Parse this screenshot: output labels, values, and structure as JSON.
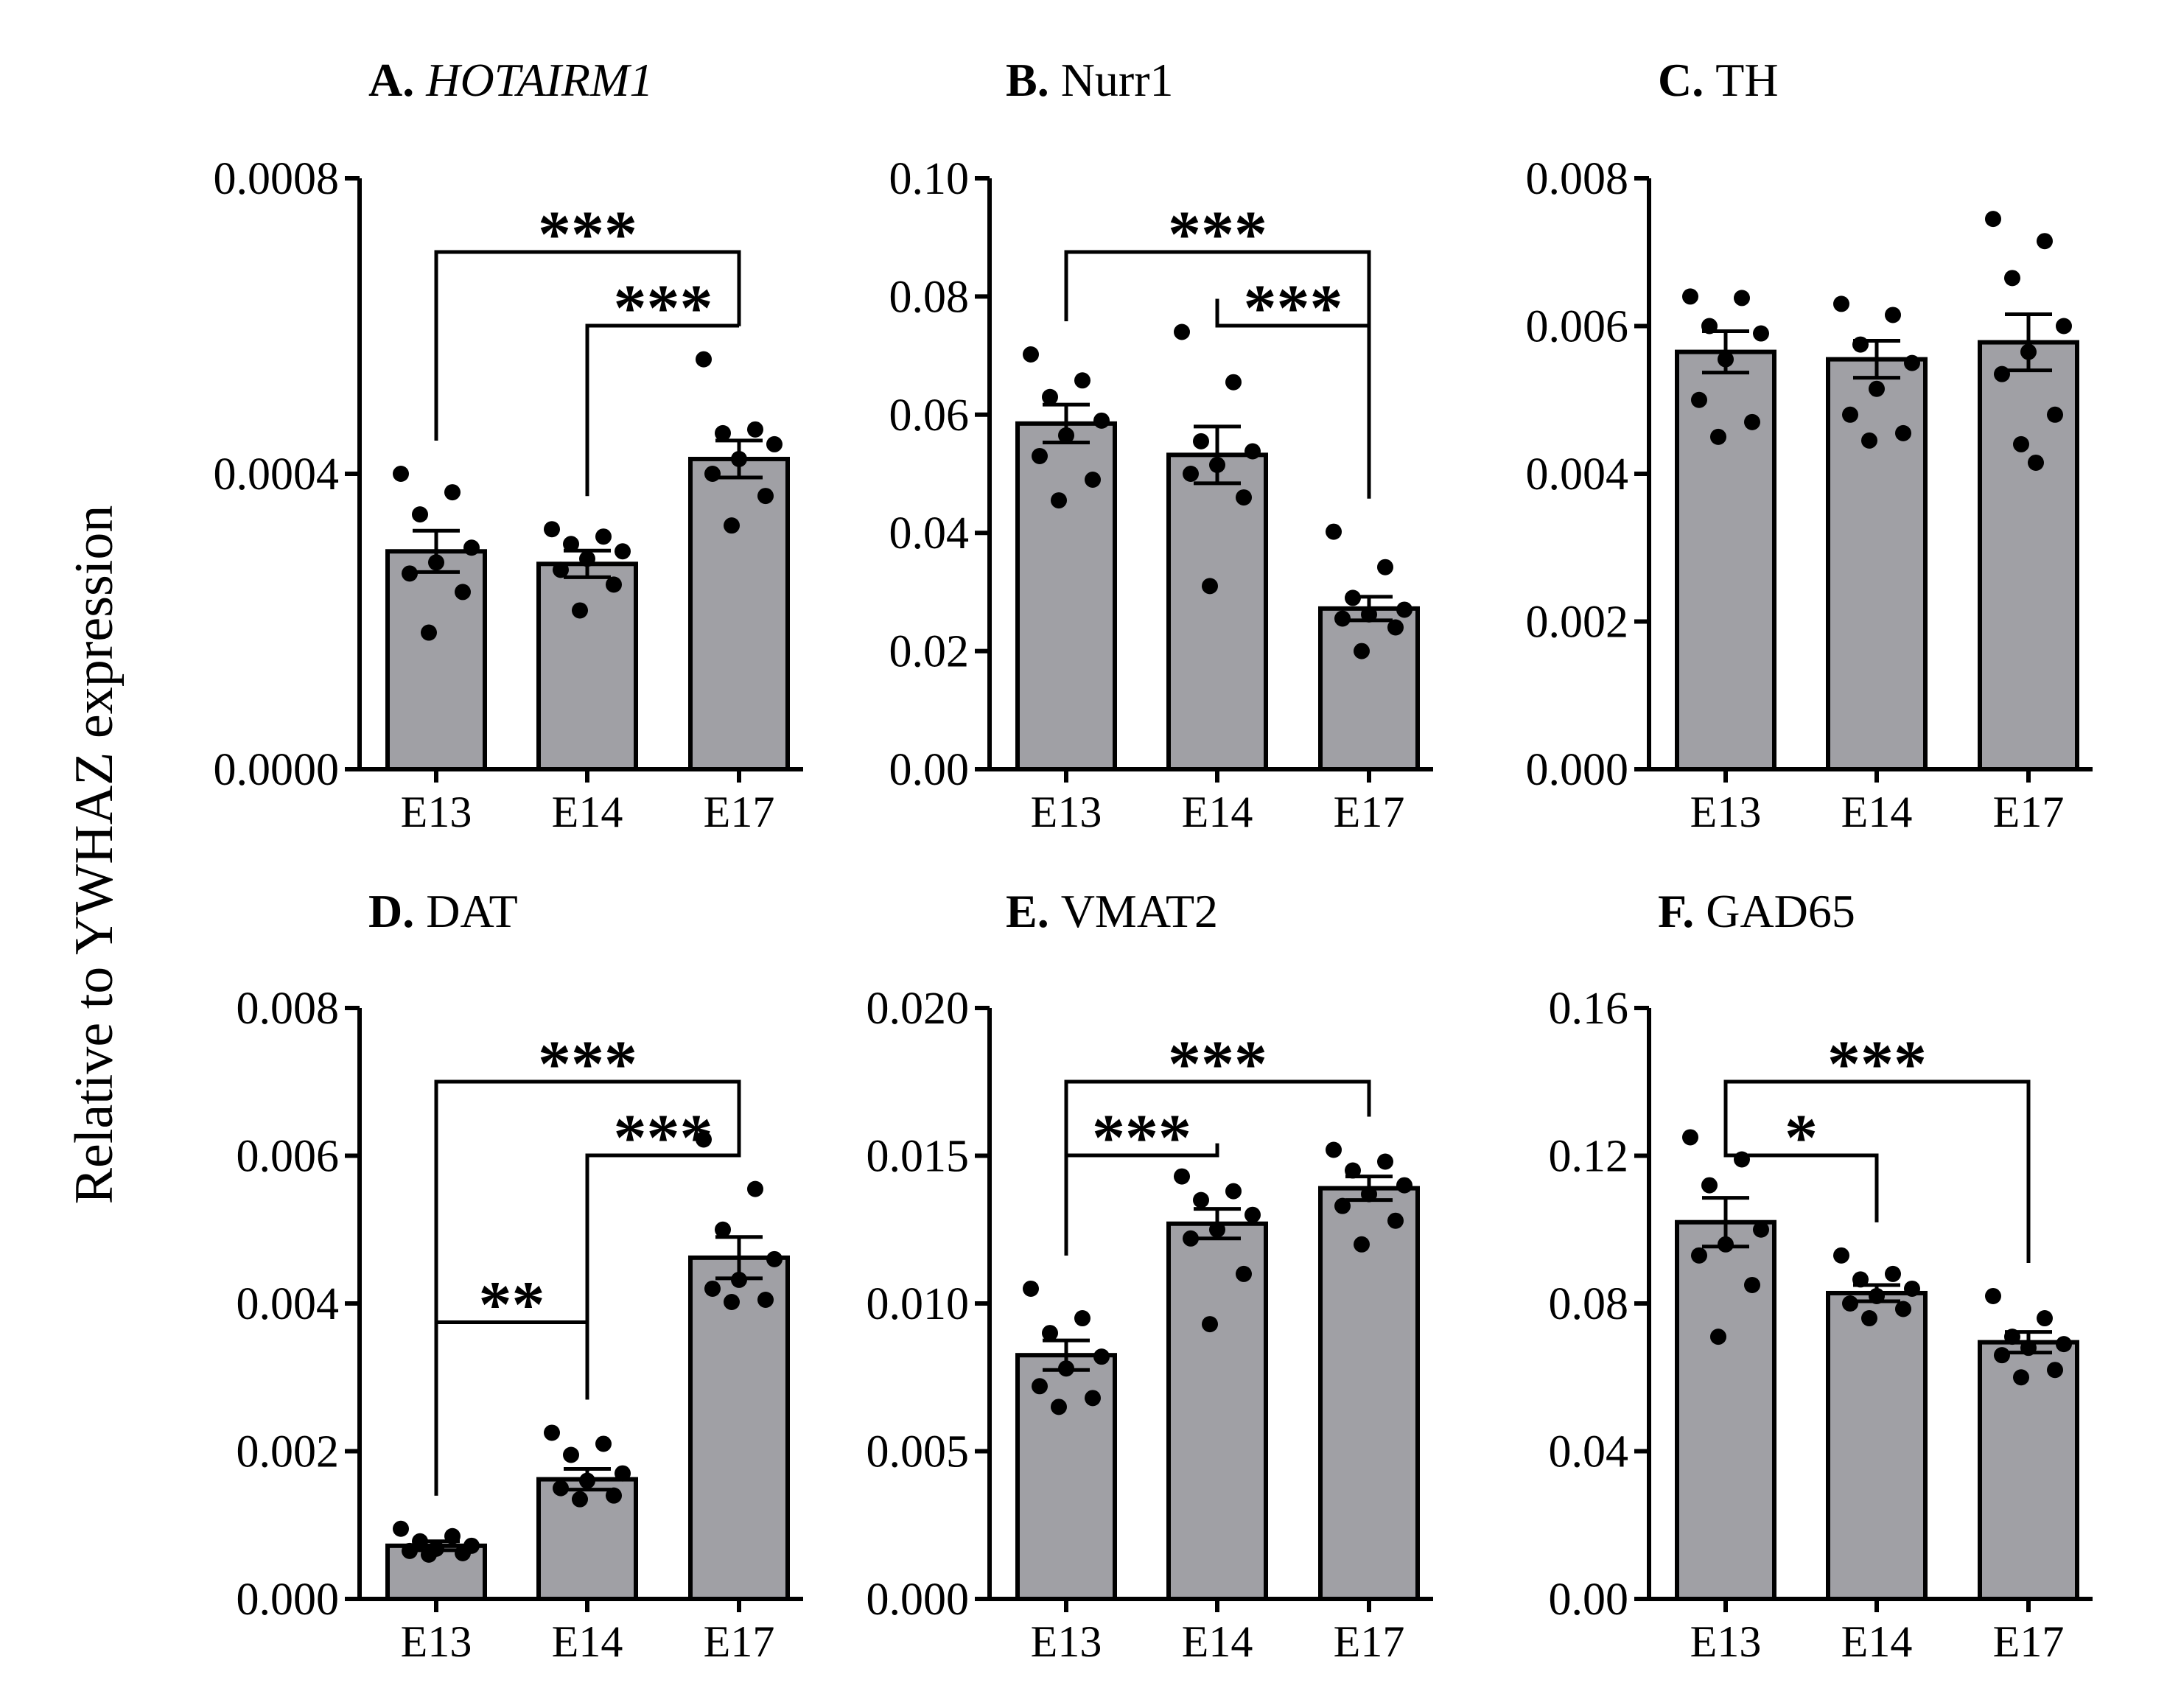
{
  "figure": {
    "ylabel": "Relative to YWHAZ expression"
  },
  "chart_data": [
    {
      "type": "bar",
      "panel": "A.",
      "title": "HOTAIRM1",
      "title_italic": true,
      "categories": [
        "E13",
        "E14",
        "E17"
      ],
      "values": [
        0.000295,
        0.000278,
        0.00042
      ],
      "sem": [
        2.8e-05,
        1.8e-05,
        2.5e-05
      ],
      "points": [
        [
          0.0004,
          0.000375,
          0.000345,
          0.0003,
          0.00028,
          0.000265,
          0.00024,
          0.000185
        ],
        [
          0.000325,
          0.000315,
          0.000305,
          0.000295,
          0.000285,
          0.00027,
          0.00025,
          0.000215
        ],
        [
          0.000555,
          0.00046,
          0.000455,
          0.00044,
          0.00042,
          0.0004,
          0.00037,
          0.00033
        ]
      ],
      "ylim": [
        0,
        0.0008
      ],
      "yticks": [
        "0.0000",
        "0.0004",
        "0.0008"
      ],
      "significance": [
        {
          "from": 0,
          "to": 2,
          "label": "***",
          "level": 0
        },
        {
          "from": 1,
          "to": 2,
          "label": "***",
          "level": 1
        }
      ]
    },
    {
      "type": "bar",
      "panel": "B.",
      "title": "Nurr1",
      "title_italic": false,
      "categories": [
        "E13",
        "E14",
        "E17"
      ],
      "values": [
        0.0585,
        0.0532,
        0.0272
      ],
      "sem": [
        0.0032,
        0.0048,
        0.002
      ],
      "points": [
        [
          0.0702,
          0.0658,
          0.063,
          0.059,
          0.0565,
          0.053,
          0.049,
          0.0455
        ],
        [
          0.074,
          0.0655,
          0.0555,
          0.0538,
          0.0515,
          0.05,
          0.046,
          0.031
        ],
        [
          0.0402,
          0.0342,
          0.029,
          0.027,
          0.0262,
          0.0255,
          0.024,
          0.02
        ]
      ],
      "ylim": [
        0,
        0.1
      ],
      "yticks": [
        "0.00",
        "0.02",
        "0.04",
        "0.06",
        "0.08",
        "0.10"
      ],
      "significance": [
        {
          "from": 0,
          "to": 2,
          "label": "***",
          "level": 0
        },
        {
          "from": 1,
          "to": 2,
          "label": "***",
          "level": 1
        }
      ]
    },
    {
      "type": "bar",
      "panel": "C.",
      "title": "TH",
      "title_italic": false,
      "categories": [
        "E13",
        "E14",
        "E17"
      ],
      "values": [
        0.00565,
        0.00555,
        0.00578
      ],
      "sem": [
        0.00028,
        0.00025,
        0.00038
      ],
      "points": [
        [
          0.0064,
          0.00638,
          0.006,
          0.0059,
          0.00555,
          0.005,
          0.0047,
          0.0045
        ],
        [
          0.0063,
          0.00615,
          0.00575,
          0.0055,
          0.00515,
          0.0048,
          0.00455,
          0.00445
        ],
        [
          0.00745,
          0.00715,
          0.00665,
          0.006,
          0.00565,
          0.00535,
          0.0048,
          0.0044,
          0.00415
        ]
      ],
      "ylim": [
        0,
        0.008
      ],
      "yticks": [
        "0.000",
        "0.002",
        "0.004",
        "0.006",
        "0.008"
      ],
      "significance": []
    },
    {
      "type": "bar",
      "panel": "D.",
      "title": "DAT",
      "title_italic": false,
      "categories": [
        "E13",
        "E14",
        "E17"
      ],
      "values": [
        0.00072,
        0.00162,
        0.00462
      ],
      "sem": [
        6e-05,
        0.00014,
        0.00028
      ],
      "points": [
        [
          0.00095,
          0.00085,
          0.00078,
          0.00072,
          0.00068,
          0.00065,
          0.00062,
          0.0006
        ],
        [
          0.00225,
          0.0021,
          0.00195,
          0.0017,
          0.0016,
          0.0015,
          0.0014,
          0.00135
        ],
        [
          0.00622,
          0.00555,
          0.005,
          0.0046,
          0.00432,
          0.0042,
          0.00405,
          0.00402
        ]
      ],
      "ylim": [
        0,
        0.008
      ],
      "yticks": [
        "0.000",
        "0.002",
        "0.004",
        "0.006",
        "0.008"
      ],
      "significance": [
        {
          "from": 0,
          "to": 2,
          "label": "***",
          "level": 0
        },
        {
          "from": 1,
          "to": 2,
          "label": "***",
          "level": 1
        },
        {
          "from": 0,
          "to": 1,
          "label": "**",
          "level": 2
        }
      ]
    },
    {
      "type": "bar",
      "panel": "E.",
      "title": "VMAT2",
      "title_italic": false,
      "categories": [
        "E13",
        "E14",
        "E17"
      ],
      "values": [
        0.00825,
        0.0127,
        0.0139
      ],
      "sem": [
        0.0005,
        0.0005,
        0.0004
      ],
      "points": [
        [
          0.0105,
          0.0095,
          0.009,
          0.0082,
          0.0078,
          0.0072,
          0.0068,
          0.0065
        ],
        [
          0.0143,
          0.0138,
          0.0135,
          0.013,
          0.0125,
          0.0122,
          0.011,
          0.0093
        ],
        [
          0.0152,
          0.0148,
          0.0145,
          0.014,
          0.0137,
          0.0133,
          0.0128,
          0.012
        ]
      ],
      "ylim": [
        0,
        0.02
      ],
      "yticks": [
        "0.000",
        "0.005",
        "0.010",
        "0.015",
        "0.020"
      ],
      "significance": [
        {
          "from": 0,
          "to": 2,
          "label": "***",
          "level": 0
        },
        {
          "from": 0,
          "to": 1,
          "label": "***",
          "level": 1
        }
      ]
    },
    {
      "type": "bar",
      "panel": "F.",
      "title": "GAD65",
      "title_italic": false,
      "categories": [
        "E13",
        "E14",
        "E17"
      ],
      "values": [
        0.102,
        0.0828,
        0.0695
      ],
      "sem": [
        0.0066,
        0.0022,
        0.0028
      ],
      "points": [
        [
          0.125,
          0.119,
          0.112,
          0.1,
          0.096,
          0.093,
          0.085,
          0.071
        ],
        [
          0.093,
          0.088,
          0.0865,
          0.084,
          0.082,
          0.08,
          0.0785,
          0.076
        ],
        [
          0.082,
          0.076,
          0.071,
          0.069,
          0.068,
          0.066,
          0.062,
          0.06
        ]
      ],
      "ylim": [
        0,
        0.16
      ],
      "yticks": [
        "0.00",
        "0.04",
        "0.08",
        "0.12",
        "0.16"
      ],
      "significance": [
        {
          "from": 0,
          "to": 2,
          "label": "***",
          "level": 0
        },
        {
          "from": 0,
          "to": 1,
          "label": "*",
          "level": 1
        }
      ]
    }
  ]
}
